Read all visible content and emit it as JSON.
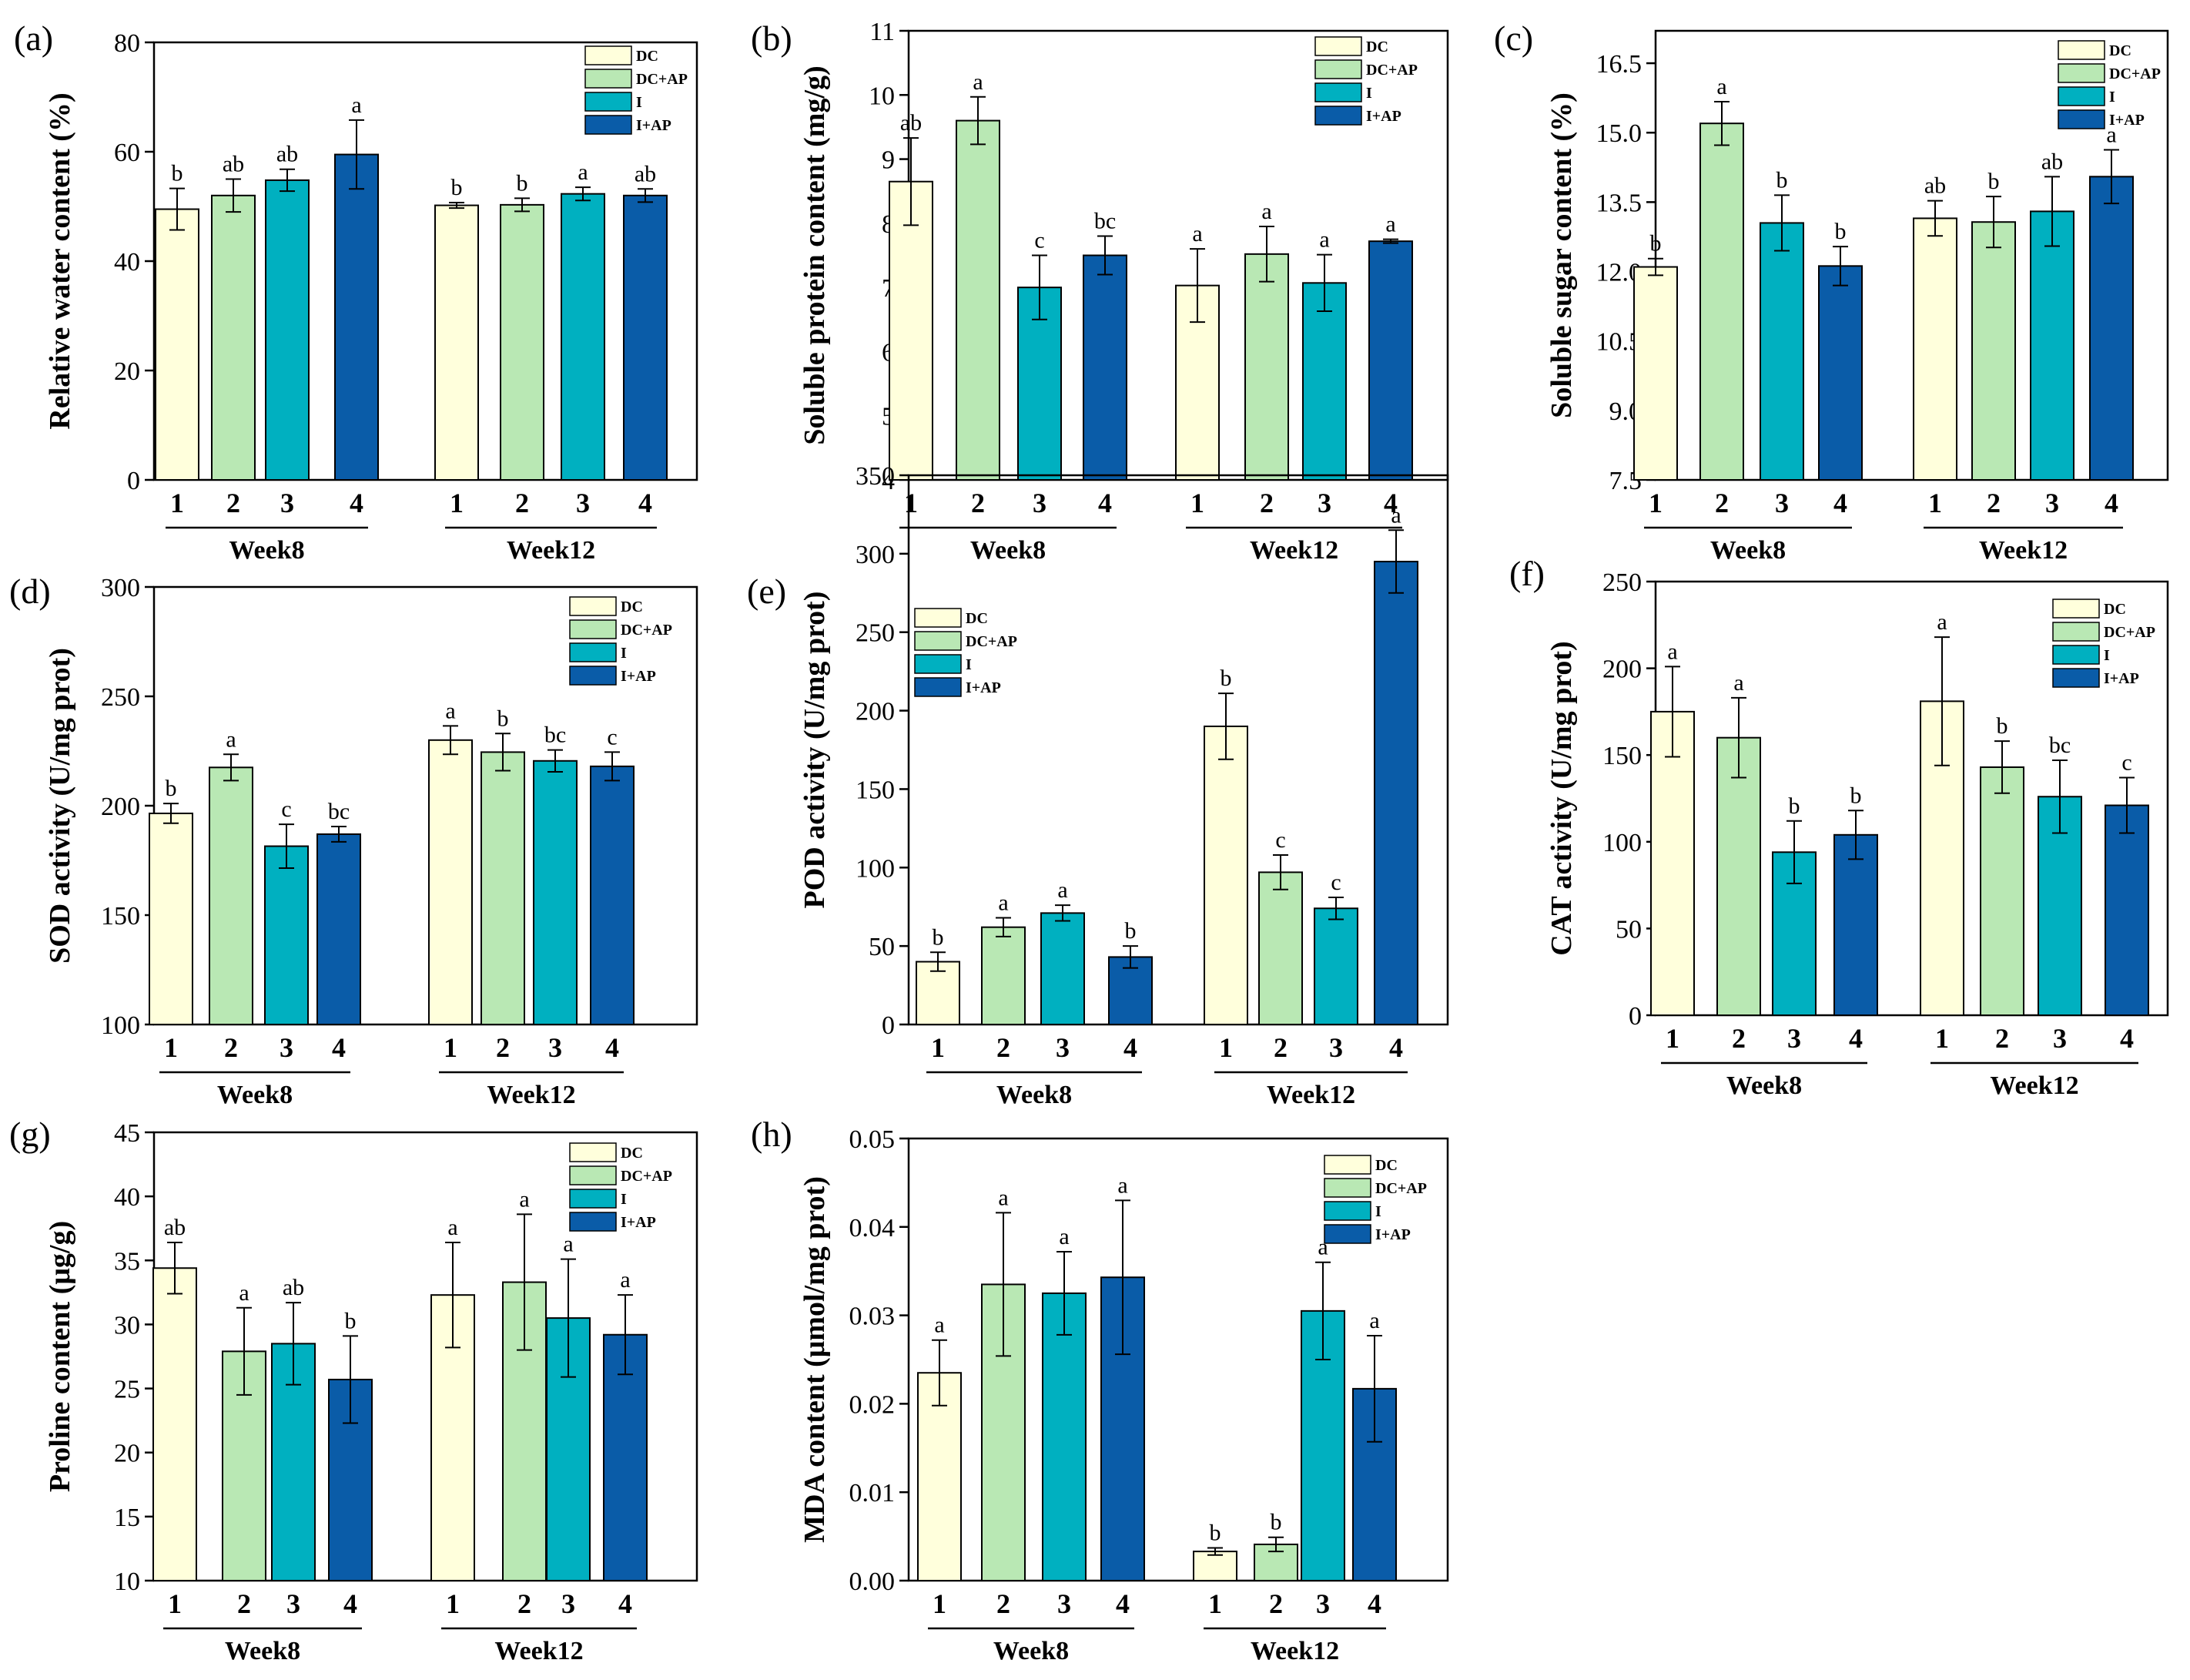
{
  "legend": [
    {
      "label": "DC",
      "color": "#ffffdc"
    },
    {
      "label": "DC+AP",
      "color": "#b9e8b4"
    },
    {
      "label": "I",
      "color": "#00b0c0"
    },
    {
      "label": "I+AP",
      "color": "#0a5ca8"
    }
  ],
  "chart_data": [
    {
      "panel": "(a)",
      "type": "bar",
      "ylabel": "Relative water content (%)",
      "ylim": [
        0,
        80
      ],
      "yticks": [
        "0",
        "20",
        "40",
        "60",
        "80"
      ],
      "groups": [
        "Week8",
        "Week12"
      ],
      "categories": [
        "1",
        "2",
        "3",
        "4"
      ],
      "series": [
        {
          "group": "Week8",
          "values": [
            49.5,
            52,
            54.8,
            59.5
          ],
          "errors": [
            3.8,
            3.0,
            2.0,
            6.3
          ],
          "letters": [
            "b",
            "ab",
            "ab",
            "a"
          ]
        },
        {
          "group": "Week12",
          "values": [
            50.2,
            50.3,
            52.3,
            52
          ],
          "errors": [
            0.5,
            1.2,
            1.2,
            1.2
          ],
          "letters": [
            "b",
            "b",
            "a",
            "ab"
          ]
        }
      ]
    },
    {
      "panel": "(b)",
      "type": "bar",
      "ylabel": "Soluble protein content (mg/g)",
      "ylim": [
        4,
        11
      ],
      "yticks": [
        "4",
        "5",
        "6",
        "7",
        "8",
        "9",
        "10",
        "11"
      ],
      "groups": [
        "Week8",
        "Week12"
      ],
      "categories": [
        "1",
        "2",
        "3",
        "4"
      ],
      "series": [
        {
          "group": "Week8",
          "values": [
            8.65,
            9.6,
            7.0,
            7.5
          ],
          "errors": [
            0.68,
            0.37,
            0.5,
            0.3
          ],
          "letters": [
            "ab",
            "a",
            "c",
            "bc"
          ]
        },
        {
          "group": "Week12",
          "values": [
            7.03,
            7.52,
            7.07,
            7.72
          ],
          "errors": [
            0.57,
            0.43,
            0.44,
            0.03
          ],
          "letters": [
            "a",
            "a",
            "a",
            "a"
          ]
        }
      ]
    },
    {
      "panel": "(c)",
      "type": "bar",
      "ylabel": "Soluble sugar content (%)",
      "ylim": [
        7.5,
        17.2
      ],
      "yticks": [
        "7.5",
        "9.0",
        "10.5",
        "12.0",
        "13.5",
        "15.0",
        "16.5"
      ],
      "groups": [
        "Week8",
        "Week12"
      ],
      "categories": [
        "1",
        "2",
        "3",
        "4"
      ],
      "series": [
        {
          "group": "Week8",
          "values": [
            12.1,
            15.2,
            13.05,
            12.12
          ],
          "errors": [
            0.18,
            0.47,
            0.6,
            0.42
          ],
          "letters": [
            "b",
            "a",
            "b",
            "b"
          ]
        },
        {
          "group": "Week12",
          "values": [
            13.15,
            13.07,
            13.3,
            14.05
          ],
          "errors": [
            0.38,
            0.55,
            0.75,
            0.58
          ],
          "letters": [
            "ab",
            "b",
            "ab",
            "a"
          ]
        }
      ]
    },
    {
      "panel": "(d)",
      "type": "bar",
      "ylabel": "SOD activity (U/mg prot)",
      "ylim": [
        100,
        300
      ],
      "yticks": [
        "100",
        "150",
        "200",
        "250",
        "300"
      ],
      "groups": [
        "Week8",
        "Week12"
      ],
      "categories": [
        "1",
        "2",
        "3",
        "4"
      ],
      "series": [
        {
          "group": "Week8",
          "values": [
            196.5,
            217.5,
            181.5,
            187
          ],
          "errors": [
            4.5,
            6.0,
            10,
            3.5
          ],
          "letters": [
            "b",
            "a",
            "c",
            "bc"
          ]
        },
        {
          "group": "Week12",
          "values": [
            230,
            224.5,
            220.5,
            218
          ],
          "errors": [
            6.5,
            8.5,
            5.0,
            6.5
          ],
          "letters": [
            "a",
            "b",
            "bc",
            "c"
          ]
        }
      ]
    },
    {
      "panel": "(e)",
      "type": "bar",
      "ylabel": "POD activity (U/mg prot)",
      "ylim": [
        0,
        350
      ],
      "yticks": [
        "0",
        "50",
        "100",
        "150",
        "200",
        "250",
        "300",
        "350"
      ],
      "groups": [
        "Week8",
        "Week12"
      ],
      "categories": [
        "1",
        "2",
        "3",
        "4"
      ],
      "series": [
        {
          "group": "Week8",
          "values": [
            40,
            62,
            71,
            43
          ],
          "errors": [
            6,
            6,
            5,
            7
          ],
          "letters": [
            "b",
            "a",
            "a",
            "b"
          ]
        },
        {
          "group": "Week12",
          "values": [
            190,
            97,
            74,
            295
          ],
          "errors": [
            21,
            11,
            7,
            20
          ],
          "letters": [
            "b",
            "c",
            "c",
            "a"
          ]
        }
      ]
    },
    {
      "panel": "(f)",
      "type": "bar",
      "ylabel": "CAT activity (U/mg prot)",
      "ylim": [
        0,
        250
      ],
      "yticks": [
        "0",
        "50",
        "100",
        "150",
        "200",
        "250"
      ],
      "groups": [
        "Week8",
        "Week12"
      ],
      "categories": [
        "1",
        "2",
        "3",
        "4"
      ],
      "series": [
        {
          "group": "Week8",
          "values": [
            175,
            160,
            94,
            104
          ],
          "errors": [
            26,
            23,
            18,
            14
          ],
          "letters": [
            "a",
            "a",
            "b",
            "b"
          ]
        },
        {
          "group": "Week12",
          "values": [
            181,
            143,
            126,
            121
          ],
          "errors": [
            37,
            15,
            21,
            16
          ],
          "letters": [
            "a",
            "b",
            "bc",
            "c"
          ]
        }
      ]
    },
    {
      "panel": "(g)",
      "type": "bar",
      "ylabel": "Proline content (μg/g)",
      "ylim": [
        10,
        45
      ],
      "yticks": [
        "10",
        "15",
        "20",
        "25",
        "30",
        "35",
        "40",
        "45"
      ],
      "groups": [
        "Week8",
        "Week12"
      ],
      "categories": [
        "1",
        "2",
        "3",
        "4"
      ],
      "series": [
        {
          "group": "Week8",
          "values": [
            34.4,
            27.9,
            28.5,
            25.7
          ],
          "errors": [
            2.0,
            3.4,
            3.2,
            3.4
          ],
          "letters": [
            "ab",
            "a",
            "ab",
            "b"
          ]
        },
        {
          "group": "Week12",
          "values": [
            32.3,
            33.3,
            30.5,
            29.2
          ],
          "errors": [
            4.1,
            5.3,
            4.6,
            3.1
          ],
          "letters": [
            "a",
            "a",
            "a",
            "a"
          ]
        }
      ]
    },
    {
      "panel": "(h)",
      "type": "bar",
      "ylabel": "MDA content (μmol/mg prot)",
      "ylim": [
        0,
        0.05
      ],
      "yticks": [
        "0.00",
        "0.01",
        "0.02",
        "0.03",
        "0.04",
        "0.05"
      ],
      "groups": [
        "Week8",
        "Week12"
      ],
      "categories": [
        "1",
        "2",
        "3",
        "4"
      ],
      "series": [
        {
          "group": "Week8",
          "values": [
            0.0235,
            0.0335,
            0.0325,
            0.0343
          ],
          "errors": [
            0.0037,
            0.0081,
            0.0047,
            0.0087
          ],
          "letters": [
            "a",
            "a",
            "a",
            "a"
          ]
        },
        {
          "group": "Week12",
          "values": [
            0.0033,
            0.0041,
            0.0305,
            0.0217
          ],
          "errors": [
            0.0004,
            0.0008,
            0.0055,
            0.006
          ],
          "letters": [
            "b",
            "b",
            "a",
            "a"
          ]
        }
      ]
    }
  ]
}
